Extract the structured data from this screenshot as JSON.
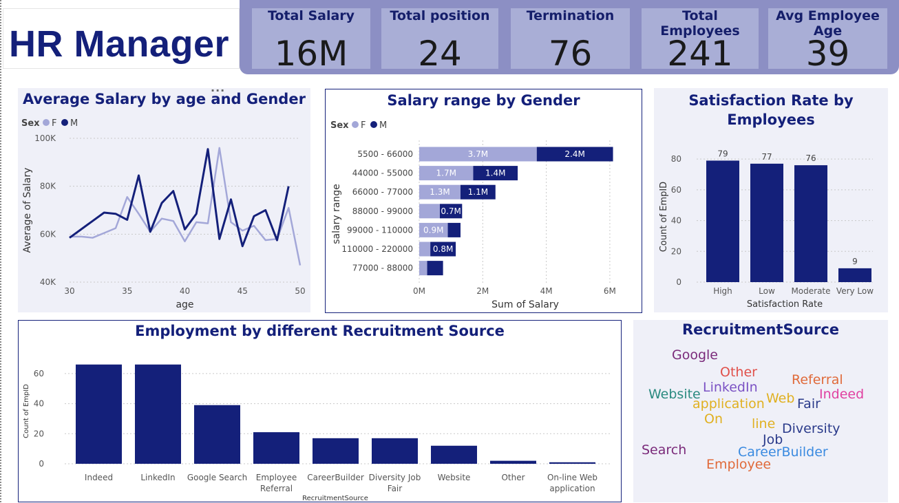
{
  "header": {
    "title": "HR Manager"
  },
  "kpis": [
    {
      "label": "Total Salary",
      "value": "16M"
    },
    {
      "label": "Total position",
      "value": "24"
    },
    {
      "label": "Termination",
      "value": "76"
    },
    {
      "label": "Total Employees",
      "value": "241"
    },
    {
      "label": "Avg Employee Age",
      "value": "39"
    }
  ],
  "more_options": "...",
  "chart_data": [
    {
      "type": "line",
      "title": "Average Salary by age and Gender",
      "legend_title": "Sex",
      "legend": [
        "F",
        "M"
      ],
      "xlabel": "age",
      "ylabel": "Average of Salary",
      "xlim": [
        30,
        50
      ],
      "ylim": [
        40000,
        100000
      ],
      "xticks": [
        "30",
        "35",
        "40",
        "45",
        "50"
      ],
      "yticks": [
        "40K",
        "60K",
        "80K",
        "100K"
      ],
      "ytick_values": [
        40000,
        60000,
        80000,
        100000
      ],
      "xtick_values": [
        30,
        35,
        40,
        45,
        50
      ],
      "colors": {
        "F": "#a3a7d8",
        "M": "#14207a"
      },
      "series": [
        {
          "name": "F",
          "x": [
            30,
            31,
            32,
            33,
            34,
            35,
            36,
            37,
            38,
            39,
            40,
            41,
            42,
            43,
            44,
            45,
            46,
            47,
            48,
            49,
            50
          ],
          "values": [
            59000,
            59000,
            58500,
            60500,
            62500,
            75500,
            68500,
            61000,
            66500,
            65500,
            57000,
            65000,
            64500,
            96000,
            65000,
            61500,
            63500,
            57500,
            58000,
            71000,
            47000
          ]
        },
        {
          "name": "M",
          "x": [
            30,
            31,
            32,
            33,
            34,
            35,
            36,
            37,
            38,
            39,
            40,
            41,
            42,
            43,
            44,
            45,
            46,
            47,
            48,
            49
          ],
          "values": [
            58500,
            62000,
            65500,
            69000,
            68500,
            66000,
            84500,
            61000,
            73000,
            78000,
            62000,
            68500,
            95500,
            58000,
            74500,
            55000,
            67500,
            70000,
            57500,
            80000
          ]
        }
      ]
    },
    {
      "type": "bar",
      "orientation": "horizontal",
      "stacked": true,
      "title": "Salary range by Gender",
      "legend_title": "Sex",
      "legend": [
        "F",
        "M"
      ],
      "xlabel": "Sum of Salary",
      "ylabel": "salary range",
      "xlim": [
        0,
        6500000
      ],
      "xticks": [
        "0M",
        "2M",
        "4M",
        "6M"
      ],
      "xtick_values": [
        0,
        2000000,
        4000000,
        6000000
      ],
      "categories": [
        "5500 - 66000",
        "44000 - 55000",
        "66000 - 77000",
        "88000 - 99000",
        "99000 - 110000",
        "110000 - 220000",
        "77000 - 88000"
      ],
      "series": [
        {
          "name": "F",
          "color": "#a3a7d8",
          "values": [
            3700000,
            1700000,
            1300000,
            650000,
            900000,
            350000,
            250000
          ],
          "labels": [
            "3.7M",
            "1.7M",
            "1.3M",
            "",
            "0.9M",
            "",
            ""
          ]
        },
        {
          "name": "M",
          "color": "#14207a",
          "values": [
            2400000,
            1400000,
            1100000,
            700000,
            400000,
            800000,
            500000
          ],
          "labels": [
            "2.4M",
            "1.4M",
            "1.1M",
            "0.7M",
            "",
            "0.8M",
            ""
          ]
        }
      ]
    },
    {
      "type": "bar",
      "title": "Satisfaction Rate by Employees",
      "xlabel": "Satisfaction Rate",
      "ylabel": "Count of EmpID",
      "ylim": [
        0,
        85
      ],
      "yticks": [
        "0",
        "20",
        "40",
        "60",
        "80"
      ],
      "ytick_values": [
        0,
        20,
        40,
        60,
        80
      ],
      "categories": [
        "High",
        "Low",
        "Moderate",
        "Very Low"
      ],
      "values": [
        79,
        77,
        76,
        9
      ],
      "data_labels": [
        "79",
        "77",
        "76",
        "9"
      ],
      "color": "#14207a"
    },
    {
      "type": "bar",
      "title": "Employment by different Recruitment Source",
      "xlabel": "RecruitmentSource",
      "ylabel": "Count of EmpID",
      "ylim": [
        0,
        70
      ],
      "yticks": [
        "0",
        "20",
        "40",
        "60"
      ],
      "ytick_values": [
        0,
        20,
        40,
        60
      ],
      "categories": [
        [
          "Indeed"
        ],
        [
          "LinkedIn"
        ],
        [
          "Google Search"
        ],
        [
          "Employee",
          "Referral"
        ],
        [
          "CareerBuilder"
        ],
        [
          "Diversity Job",
          "Fair"
        ],
        [
          "Website"
        ],
        [
          "Other"
        ],
        [
          "On-line Web",
          "application"
        ]
      ],
      "values": [
        66,
        66,
        39,
        21,
        17,
        17,
        12,
        2,
        1
      ],
      "color": "#14207a"
    }
  ],
  "wordcloud": {
    "title": "RecruitmentSource",
    "words": [
      {
        "text": "Google",
        "color": "#7a2a7a"
      },
      {
        "text": "Other",
        "color": "#e0504a"
      },
      {
        "text": "LinkedIn",
        "color": "#7b52c4"
      },
      {
        "text": "Referral",
        "color": "#e06a3a"
      },
      {
        "text": "Website",
        "color": "#2a8a80"
      },
      {
        "text": "application",
        "color": "#e0b020"
      },
      {
        "text": "Web",
        "color": "#e0b020"
      },
      {
        "text": "Fair",
        "color": "#2a3a8a"
      },
      {
        "text": "Indeed",
        "color": "#e040a0"
      },
      {
        "text": "On",
        "color": "#e0b020"
      },
      {
        "text": "line",
        "color": "#e0b020"
      },
      {
        "text": "Diversity",
        "color": "#2a3a8a"
      },
      {
        "text": "Job",
        "color": "#2a3a8a"
      },
      {
        "text": "Search",
        "color": "#7a2a7a"
      },
      {
        "text": "CareerBuilder",
        "color": "#3a8ae0"
      },
      {
        "text": "Employee",
        "color": "#e06a3a"
      }
    ]
  }
}
